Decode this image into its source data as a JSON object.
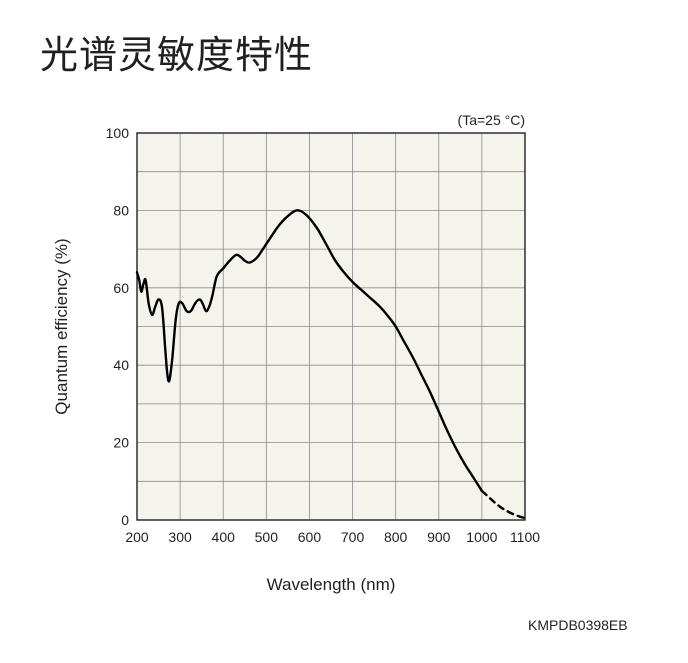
{
  "title": "光谱灵敏度特性",
  "doc_code": "KMPDB0398EB",
  "chart_data": {
    "type": "line",
    "condition": "(Ta=25 °C)",
    "xlabel": "Wavelength (nm)",
    "ylabel": "Quantum efficiency (%)",
    "xlim": [
      200,
      1100
    ],
    "ylim": [
      0,
      100
    ],
    "x_ticks": [
      "200",
      "300",
      "400",
      "500",
      "600",
      "700",
      "800",
      "900",
      "1000",
      "1100"
    ],
    "y_ticks": [
      "0",
      "20",
      "40",
      "60",
      "80",
      "100"
    ],
    "grid": true,
    "colors": {
      "plot_background": "#f4f3ec",
      "grid": "#8a8a8a",
      "line": "#000000"
    },
    "series": [
      {
        "style": "solid",
        "x": [
          200,
          205,
          210,
          215,
          220,
          227,
          235,
          242,
          250,
          258,
          265,
          270,
          275,
          282,
          290,
          297,
          305,
          315,
          325,
          335,
          345,
          352,
          360,
          367,
          375,
          385,
          400,
          415,
          430,
          440,
          450,
          460,
          470,
          480,
          495,
          510,
          525,
          540,
          555,
          565,
          575,
          585,
          600,
          620,
          640,
          660,
          680,
          700,
          720,
          740,
          760,
          780,
          800,
          820,
          840,
          860,
          880,
          900,
          920,
          940,
          960,
          980,
          1000
        ],
        "y": [
          64,
          62,
          59,
          61,
          62,
          56,
          53,
          55,
          57,
          55,
          45,
          38,
          36,
          42,
          52,
          56,
          56,
          54,
          54,
          56,
          57,
          56,
          54,
          55,
          58,
          63,
          65,
          67,
          68.5,
          68,
          67,
          66.5,
          67,
          68,
          70.5,
          73,
          75.5,
          77.5,
          79,
          79.8,
          80,
          79.5,
          78,
          75,
          71,
          67,
          64,
          61.5,
          59.5,
          57.5,
          55.5,
          53,
          50,
          46,
          42,
          37.5,
          33,
          28,
          23,
          18.5,
          14.5,
          11,
          7.5
        ]
      },
      {
        "style": "dashed",
        "x": [
          1000,
          1015,
          1030,
          1045,
          1060,
          1075,
          1090,
          1100
        ],
        "y": [
          7.5,
          6,
          4.5,
          3.2,
          2.2,
          1.4,
          0.8,
          0.5
        ]
      }
    ]
  }
}
